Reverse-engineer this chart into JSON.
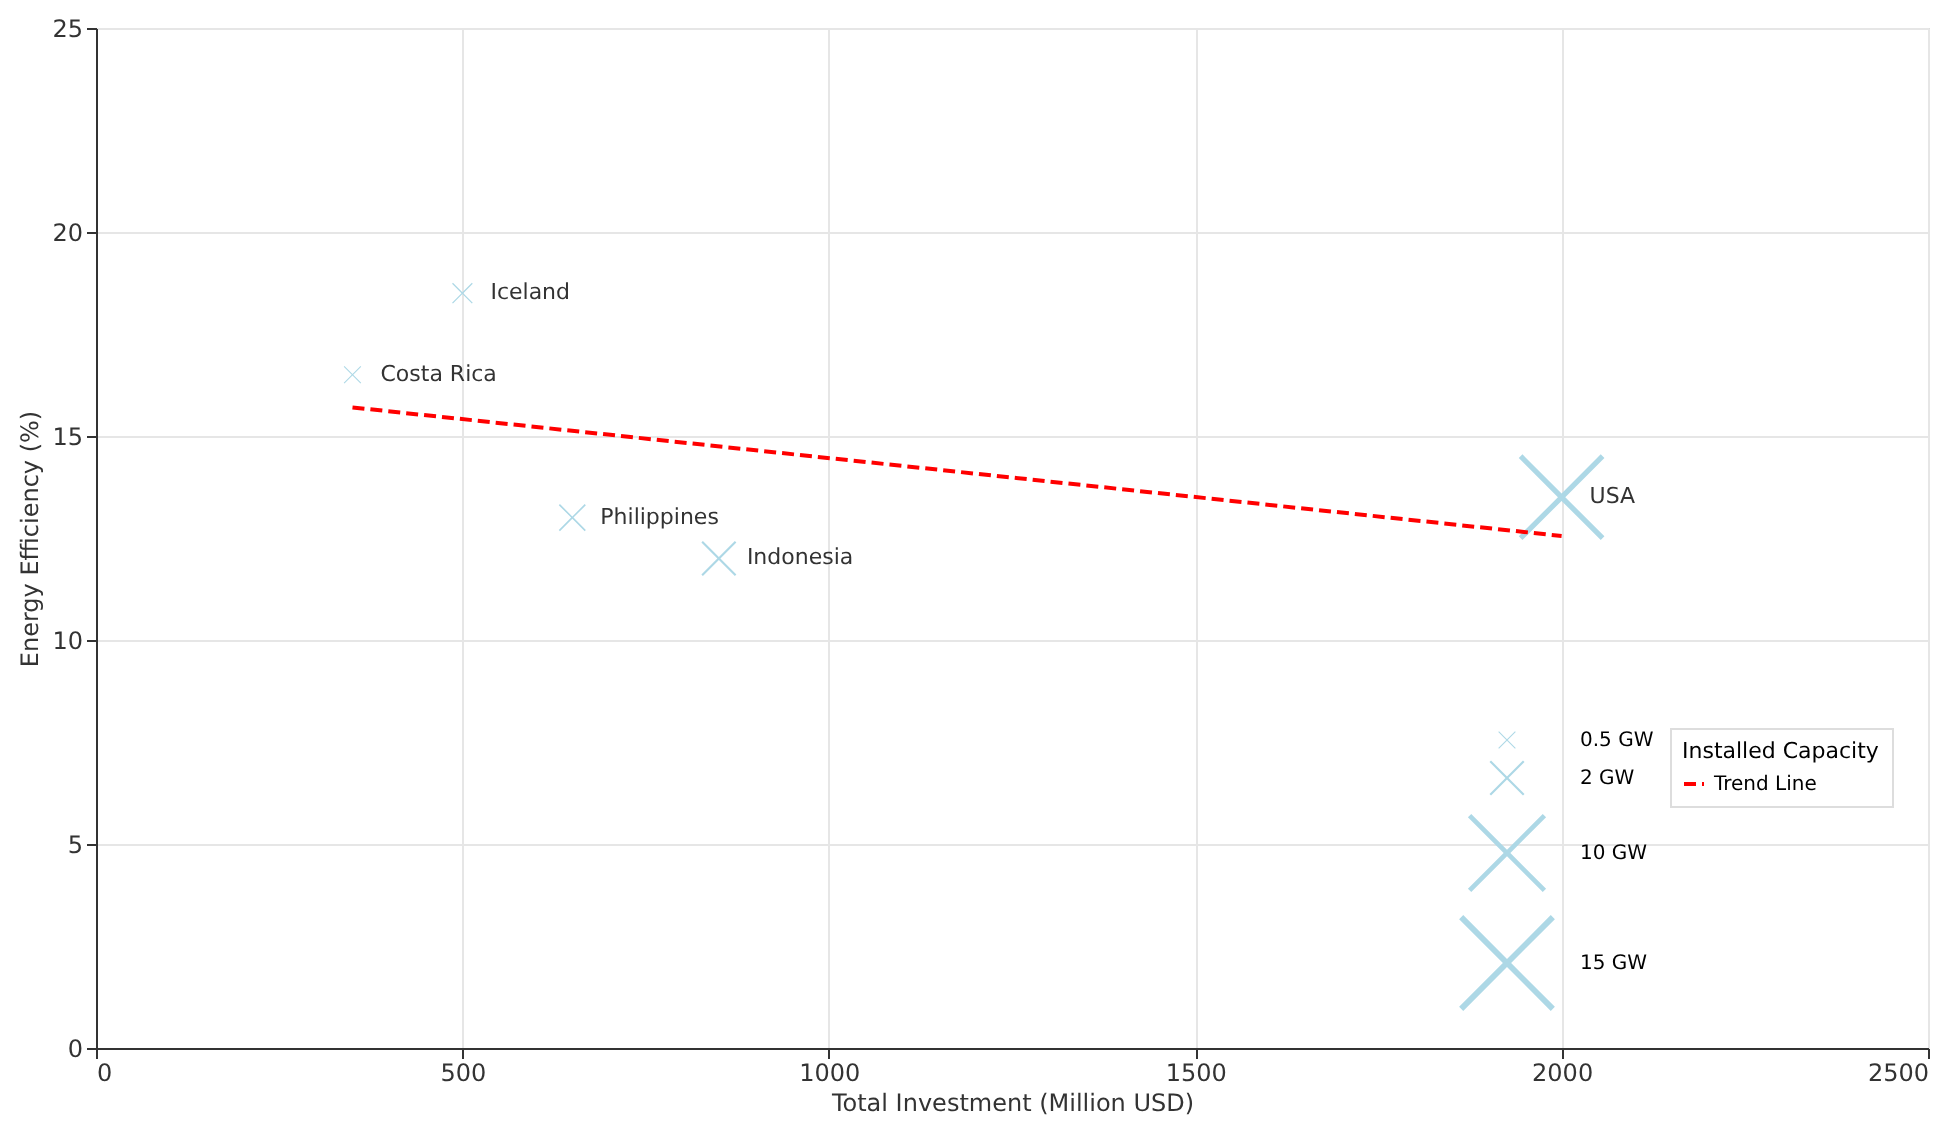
{
  "chart_data": {
    "type": "bubble",
    "xlabel": "Total Investment (Million USD)",
    "ylabel": "Energy Efficiency (%)",
    "legend_title": "Installed Capacity",
    "xlim": [
      0,
      2500
    ],
    "xticks": [
      0,
      500,
      1000,
      1500,
      2000,
      2500
    ],
    "ylim": [
      0,
      25
    ],
    "yticks": [
      0,
      5,
      10,
      15,
      20,
      25
    ],
    "grid": true,
    "legend": "bottom right",
    "size_legend": [
      {
        "value": 0.5,
        "label": "0.5 GW"
      },
      {
        "value": 2,
        "label": "2 GW"
      },
      {
        "value": 10,
        "label": "10 GW"
      },
      {
        "value": 15,
        "label": "15 GW"
      }
    ],
    "series": [
      {
        "x": [
          350,
          500,
          650,
          850,
          2000
        ],
        "values": [
          16.5,
          18.5,
          13,
          12,
          13.5
        ],
        "sizes": [
          0.5,
          0.7,
          1.2,
          2,
          12
        ],
        "color": "#add8e6",
        "marker": "cross"
      },
      {
        "type": "line",
        "name": "Trend Line",
        "x": [
          350,
          2000
        ],
        "values": [
          15.7,
          12.55
        ],
        "color": "#ff0000",
        "line_style": "dashed"
      }
    ],
    "annotations": [
      {
        "text": "Costa Rica",
        "x": 350,
        "y": 16.5
      },
      {
        "text": "Iceland",
        "x": 500,
        "y": 18.5
      },
      {
        "text": "Philippines",
        "x": 650,
        "y": 13
      },
      {
        "text": "Indonesia",
        "x": 850,
        "y": 12
      },
      {
        "text": "USA",
        "x": 2000,
        "y": 13.5
      }
    ]
  }
}
